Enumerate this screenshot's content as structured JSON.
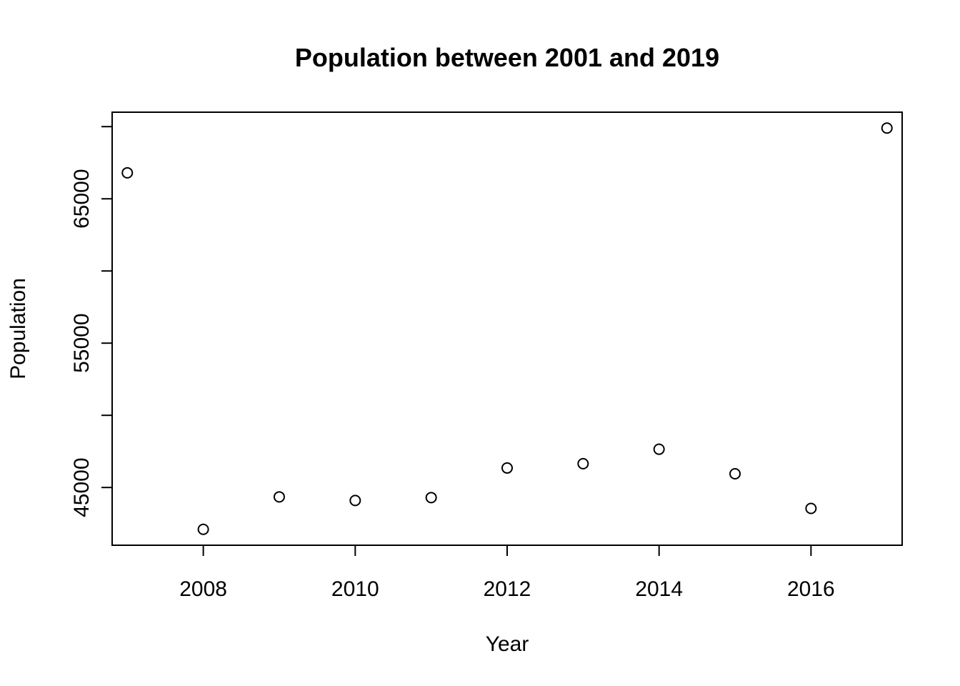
{
  "chart_data": {
    "type": "scatter",
    "title": "Population between 2001 and 2019",
    "xlabel": "Year",
    "ylabel": "Population",
    "x": [
      2007,
      2008,
      2009,
      2010,
      2011,
      2012,
      2013,
      2014,
      2015,
      2016,
      2017
    ],
    "y": [
      66800,
      42100,
      44350,
      44100,
      44300,
      46350,
      46650,
      47650,
      45950,
      43550,
      69900
    ],
    "xlim": [
      2006.8,
      2017.2
    ],
    "ylim": [
      41000,
      71000
    ],
    "x_ticks": [
      "2008",
      "2010",
      "2012",
      "2014",
      "2016"
    ],
    "x_tick_values": [
      2008,
      2010,
      2012,
      2014,
      2016
    ],
    "y_ticks": [
      "45000",
      "55000",
      "65000"
    ],
    "y_tick_values": [
      45000,
      55000,
      65000
    ],
    "y_minor_tick_values": [
      45000,
      50000,
      55000,
      60000,
      65000,
      70000
    ],
    "marker": "open-circle",
    "grid": false,
    "colors": {
      "marker": "#000000",
      "axis": "#000000",
      "background": "#ffffff"
    }
  }
}
